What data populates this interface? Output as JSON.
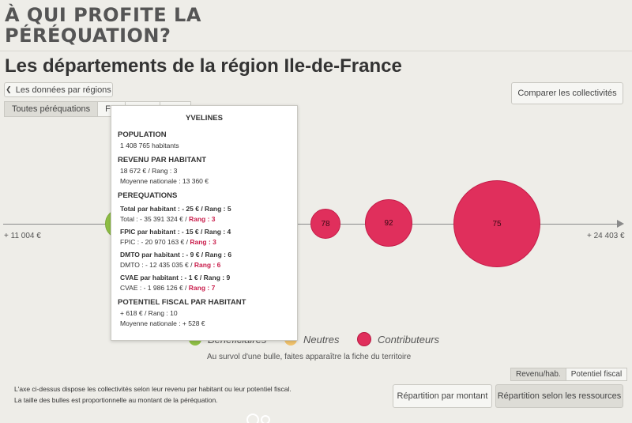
{
  "brand": {
    "line1": "À QUI PROFITE LA",
    "line2": "PÉRÉQUATION?"
  },
  "page_title": "Les départements de la région Ile-de-France",
  "back_button": {
    "arrow": "❮",
    "label": "Les données par régions"
  },
  "compare_button": "Comparer les collectivités",
  "tabs": [
    {
      "label": "Toutes péréquations",
      "active": true
    },
    {
      "label": "FPIC"
    },
    {
      "label": ""
    },
    {
      "label": ""
    }
  ],
  "axis": {
    "min_label": "+ 11 004 €",
    "max_label": "+ 24 403 €"
  },
  "bubbles": [
    {
      "label": "78",
      "status": "contributeur"
    },
    {
      "label": "92",
      "status": "contributeur"
    },
    {
      "label": "75",
      "status": "contributeur"
    }
  ],
  "legend": {
    "beneficiaires": "Bénéficiaires",
    "neutres": "Neutres",
    "contributeurs": "Contributeurs"
  },
  "hint": "Au survol d'une bulle, faites apparaître la fiche du territoire",
  "toggle": [
    {
      "label": "Revenu/hab.",
      "active": true
    },
    {
      "label": "Potentiel fiscal"
    }
  ],
  "notes": {
    "line1": "L'axe ci-dessus dispose les collectivités selon leur revenu par habitant ou leur potentiel fiscal.",
    "line2": "La taille des bulles est proportionnelle au montant de la péréquation."
  },
  "bottom_buttons": {
    "montant": "Répartition par montant",
    "ressources": "Répartition selon les ressources"
  },
  "tooltip": {
    "title": "YVELINES",
    "population": {
      "heading": "POPULATION",
      "value": "1 408 765 habitants"
    },
    "revenu": {
      "heading": "REVENU PAR HABITANT",
      "value": "18 672 € / Rang : 3",
      "national": "Moyenne nationale : 13 360 €"
    },
    "perequations": {
      "heading": "PEREQUATIONS",
      "items": [
        {
          "head": "Total par habitant : - 25 € / Rang : 5",
          "detail": "Total : - 35 391 324 € / ",
          "rank": "Rang : 3"
        },
        {
          "head": "FPIC par habitant : - 15 € / Rang : 4",
          "detail": "FPIC : - 20 970 163 € / ",
          "rank": "Rang : 3"
        },
        {
          "head": "DMTO par habitant : - 9 € / Rang : 6",
          "detail": "DMTO : - 12 435 035 € / ",
          "rank": "Rang : 6"
        },
        {
          "head": "CVAE par habitant : - 1 € / Rang : 9",
          "detail": "CVAE : - 1 986 126 € / ",
          "rank": "Rang : 7"
        }
      ]
    },
    "potentiel": {
      "heading": "POTENTIEL FISCAL PAR HABITANT",
      "value": "+ 618 € / Rang : 10",
      "national": "Moyenne nationale : + 528 €"
    }
  },
  "colors": {
    "contributeurs": "#e02f5c",
    "beneficiaires": "#8fbf45",
    "neutres": "#f1c36d",
    "background": "#eeede8"
  }
}
